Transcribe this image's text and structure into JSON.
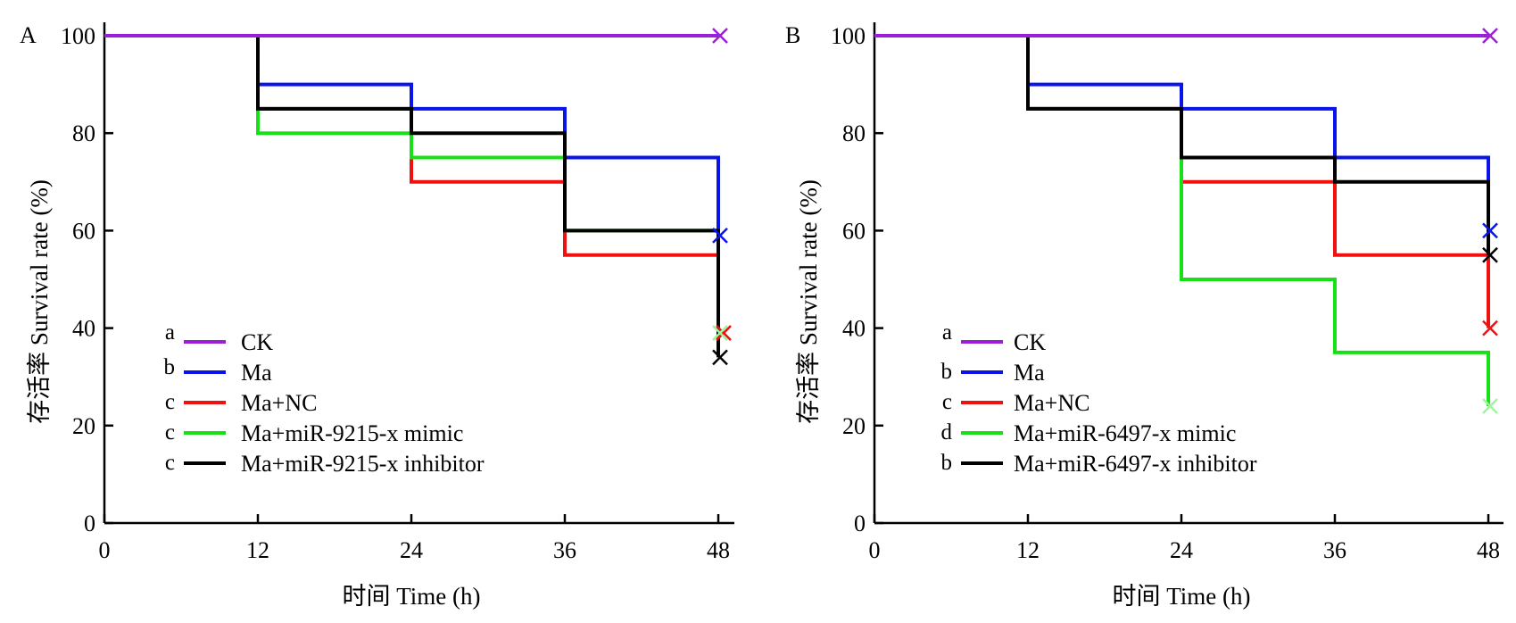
{
  "chart_data": [
    {
      "type": "line",
      "step": true,
      "panel_label": "A",
      "xlabel": "时间 Time (h)",
      "ylabel": "存活率 Survival rate (%)",
      "xlim": [
        0,
        48
      ],
      "ylim": [
        0,
        100
      ],
      "xticks": [
        "0",
        "12",
        "24",
        "36",
        "48"
      ],
      "yticks": [
        "0",
        "20",
        "40",
        "60",
        "80",
        "100"
      ],
      "grid": false,
      "legend_position": "bottom-left",
      "series": [
        {
          "name": "CK",
          "letter": "a",
          "color": "#9b1ed8",
          "x": [
            0,
            12,
            24,
            36,
            48
          ],
          "y": [
            100,
            100,
            100,
            100,
            100
          ],
          "end_marker": 100
        },
        {
          "name": "Ma",
          "letter": "b",
          "color": "#0a14e8",
          "x": [
            0,
            12,
            24,
            36,
            48
          ],
          "y": [
            100,
            90,
            85,
            75,
            75
          ],
          "end_marker": 59
        },
        {
          "name": "Ma+NC",
          "letter": "c",
          "color": "#f01010",
          "x": [
            0,
            12,
            24,
            36,
            48
          ],
          "y": [
            100,
            85,
            70,
            55,
            55
          ],
          "end_marker": 39
        },
        {
          "name": "Ma+miR-9215-x mimic",
          "letter": "c",
          "color": "#16e016",
          "x": [
            0,
            12,
            24,
            36,
            48
          ],
          "y": [
            100,
            80,
            75,
            60,
            60
          ],
          "end_marker": 39
        },
        {
          "name": "Ma+miR-9215-x inhibitor",
          "letter": "c",
          "color": "#000000",
          "x": [
            0,
            12,
            24,
            36,
            48
          ],
          "y": [
            100,
            85,
            80,
            60,
            60
          ],
          "end_marker": 34
        }
      ]
    },
    {
      "type": "line",
      "step": true,
      "panel_label": "B",
      "xlabel": "时间 Time (h)",
      "ylabel": "存活率 Survival rate (%)",
      "xlim": [
        0,
        48
      ],
      "ylim": [
        0,
        100
      ],
      "xticks": [
        "0",
        "12",
        "24",
        "36",
        "48"
      ],
      "yticks": [
        "0",
        "20",
        "40",
        "60",
        "80",
        "100"
      ],
      "grid": false,
      "legend_position": "bottom-left",
      "series": [
        {
          "name": "CK",
          "letter": "a",
          "color": "#9b1ed8",
          "x": [
            0,
            12,
            24,
            36,
            48
          ],
          "y": [
            100,
            100,
            100,
            100,
            100
          ],
          "end_marker": 100
        },
        {
          "name": "Ma",
          "letter": "b",
          "color": "#0a14e8",
          "x": [
            0,
            12,
            24,
            36,
            48
          ],
          "y": [
            100,
            90,
            85,
            75,
            75
          ],
          "end_marker": 60
        },
        {
          "name": "Ma+NC",
          "letter": "c",
          "color": "#f01010",
          "x": [
            0,
            12,
            24,
            36,
            48
          ],
          "y": [
            100,
            85,
            70,
            55,
            55
          ],
          "end_marker": 40
        },
        {
          "name": "Ma+miR-6497-x mimic",
          "letter": "d",
          "color": "#16e016",
          "x": [
            0,
            12,
            24,
            36,
            48
          ],
          "y": [
            100,
            85,
            50,
            35,
            35
          ],
          "end_marker": 24
        },
        {
          "name": "Ma+miR-6497-x inhibitor",
          "letter": "b",
          "color": "#000000",
          "x": [
            0,
            12,
            24,
            36,
            48
          ],
          "y": [
            100,
            85,
            75,
            70,
            70
          ],
          "end_marker": 55
        }
      ]
    }
  ]
}
